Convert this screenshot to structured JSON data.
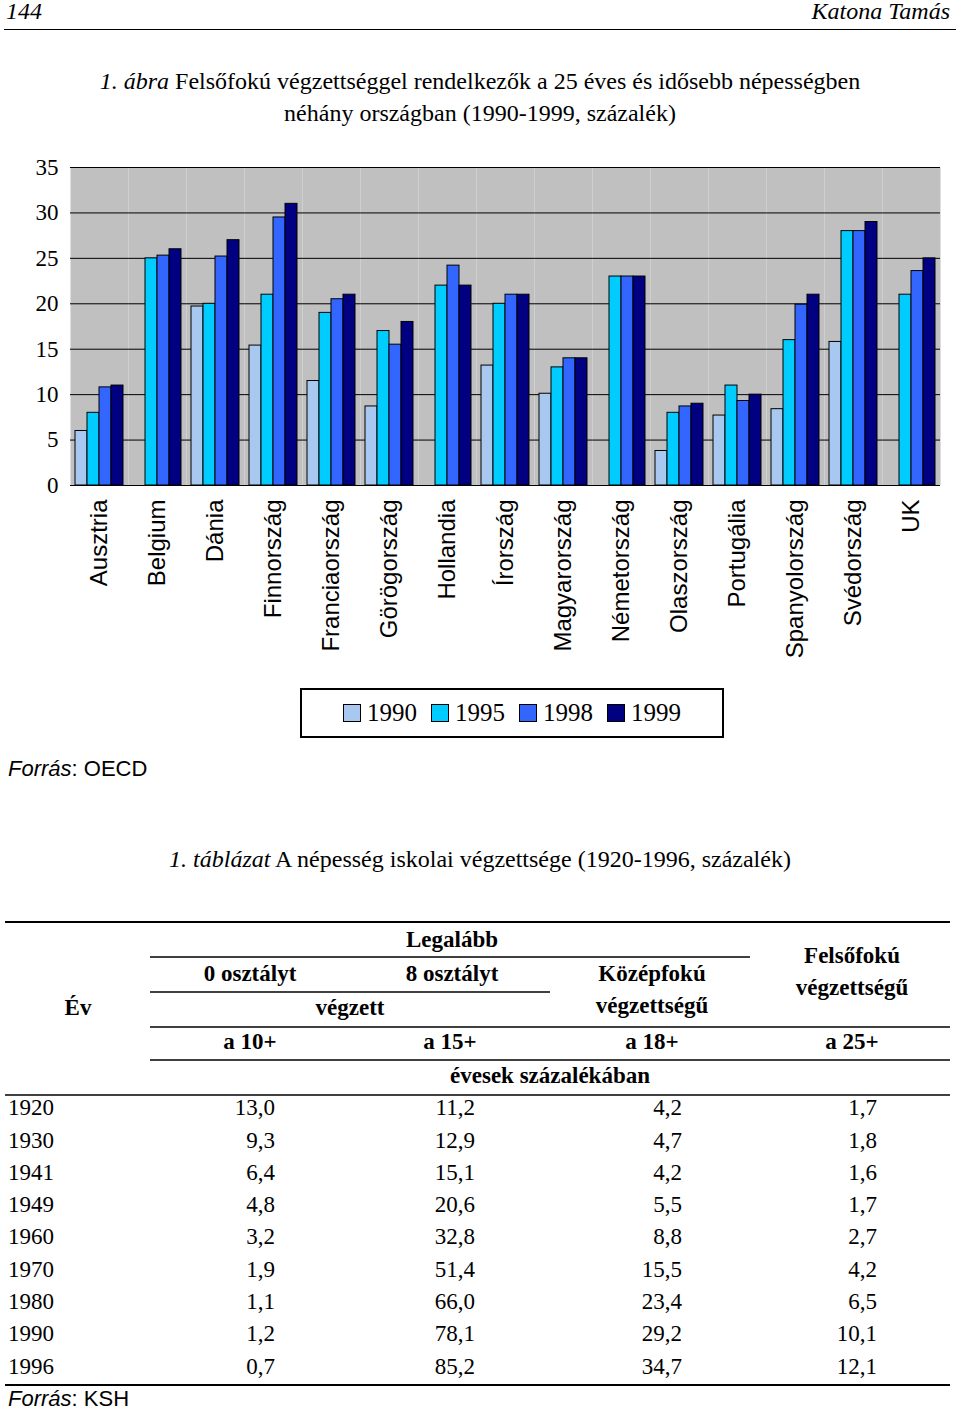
{
  "header": {
    "page": "144",
    "author": "Katona Tamás"
  },
  "figure": {
    "caption_label": "1. ábra",
    "caption": [
      "Felsőfokú végzettséggel rendelkezők a 25 éves és idősebb népességben",
      "néhány országban (1990-1999, százalék)"
    ],
    "source": {
      "italic": "Forrás",
      "text": ": OECD"
    }
  },
  "chart_data": {
    "type": "bar",
    "categories": [
      "Ausztria",
      "Belgium",
      "Dánia",
      "Finnország",
      "Franciaország",
      "Görögország",
      "Hollandia",
      "Írország",
      "Magyarország",
      "Németország",
      "Olaszország",
      "Portugália",
      "Spanyolország",
      "Svédország",
      "UK"
    ],
    "series": [
      {
        "name": "1990",
        "color": "#a8c8f0",
        "values": [
          6,
          null,
          19.7,
          15.4,
          11.5,
          8.7,
          null,
          13.2,
          10.1,
          null,
          3.8,
          7.7,
          8.4,
          15.8,
          null
        ]
      },
      {
        "name": "1995",
        "color": "#00ccff",
        "values": [
          8,
          25,
          20,
          21,
          19,
          17,
          22,
          20,
          13,
          23,
          8,
          11,
          16,
          28,
          21
        ]
      },
      {
        "name": "1998",
        "color": "#3366ff",
        "values": [
          10.8,
          25.3,
          25.2,
          29.5,
          20.5,
          15.5,
          24.2,
          21,
          14,
          23,
          8.7,
          9.3,
          19.9,
          28,
          23.6
        ]
      },
      {
        "name": "1999",
        "color": "#000080",
        "values": [
          11,
          26,
          27,
          31,
          21,
          18,
          22,
          21,
          14,
          23,
          9,
          10,
          21,
          29,
          25
        ]
      }
    ],
    "ylim": [
      0,
      35
    ],
    "yticks": [
      0,
      5,
      10,
      15,
      20,
      25,
      30,
      35
    ],
    "grid": true,
    "legend": "bottom"
  },
  "table": {
    "caption_label": "1. táblázat",
    "caption": "A népesség iskolai végzettsége (1920-1996, százalék)",
    "header": {
      "year": "Év",
      "group": "Legalább",
      "col1": "0 osztályt",
      "col2": "8 osztályt",
      "done": "végzett",
      "col3": [
        "Középfokú",
        "végzettségű"
      ],
      "col4": [
        "Felsőfokú",
        "végzettségű"
      ],
      "ages": [
        "a 10+",
        "a 15+",
        "a 18+",
        "a 25+"
      ],
      "unit": "évesek százalékában"
    },
    "rows": [
      [
        "1920",
        "13,0",
        "11,2",
        "4,2",
        "1,7"
      ],
      [
        "1930",
        "9,3",
        "12,9",
        "4,7",
        "1,8"
      ],
      [
        "1941",
        "6,4",
        "15,1",
        "4,2",
        "1,6"
      ],
      [
        "1949",
        "4,8",
        "20,6",
        "5,5",
        "1,7"
      ],
      [
        "1960",
        "3,2",
        "32,8",
        "8,8",
        "2,7"
      ],
      [
        "1970",
        "1,9",
        "51,4",
        "15,5",
        "4,2"
      ],
      [
        "1980",
        "1,1",
        "66,0",
        "23,4",
        "6,5"
      ],
      [
        "1990",
        "1,2",
        "78,1",
        "29,2",
        "10,1"
      ],
      [
        "1996",
        "0,7",
        "85,2",
        "34,7",
        "12,1"
      ]
    ],
    "source": {
      "italic": "Forrás",
      "text": ": KSH"
    }
  }
}
